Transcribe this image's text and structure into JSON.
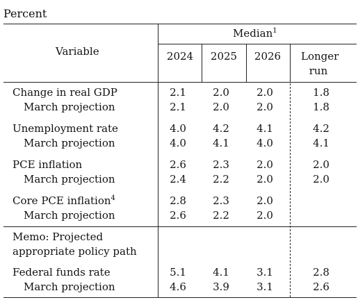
{
  "unit_label": "Percent",
  "header": {
    "variable": "Variable",
    "median": "Median",
    "median_note": "1",
    "years": [
      "2024",
      "2025",
      "2026"
    ],
    "longer_run_line1": "Longer",
    "longer_run_line2": "run"
  },
  "rows": [
    {
      "label": "Change in real GDP",
      "values": [
        "2.1",
        "2.0",
        "2.0",
        "1.8"
      ]
    },
    {
      "label": "March projection",
      "values": [
        "2.1",
        "2.0",
        "2.0",
        "1.8"
      ]
    },
    {
      "label": "Unemployment rate",
      "values": [
        "4.0",
        "4.2",
        "4.1",
        "4.2"
      ]
    },
    {
      "label": "March projection",
      "values": [
        "4.0",
        "4.1",
        "4.0",
        "4.1"
      ]
    },
    {
      "label": "PCE inflation",
      "values": [
        "2.6",
        "2.3",
        "2.0",
        "2.0"
      ]
    },
    {
      "label": "March projection",
      "values": [
        "2.4",
        "2.2",
        "2.0",
        "2.0"
      ]
    },
    {
      "label": "Core PCE inflation",
      "note": "4",
      "values": [
        "2.8",
        "2.3",
        "2.0",
        ""
      ]
    },
    {
      "label": "March projection",
      "values": [
        "2.6",
        "2.2",
        "2.0",
        ""
      ]
    }
  ],
  "memo": {
    "line1": "Memo: Projected",
    "line2": "appropriate policy path"
  },
  "memo_rows": [
    {
      "label": "Federal funds rate",
      "values": [
        "5.1",
        "4.1",
        "3.1",
        "2.8"
      ]
    },
    {
      "label": "March projection",
      "values": [
        "4.6",
        "3.9",
        "3.1",
        "2.6"
      ]
    }
  ]
}
